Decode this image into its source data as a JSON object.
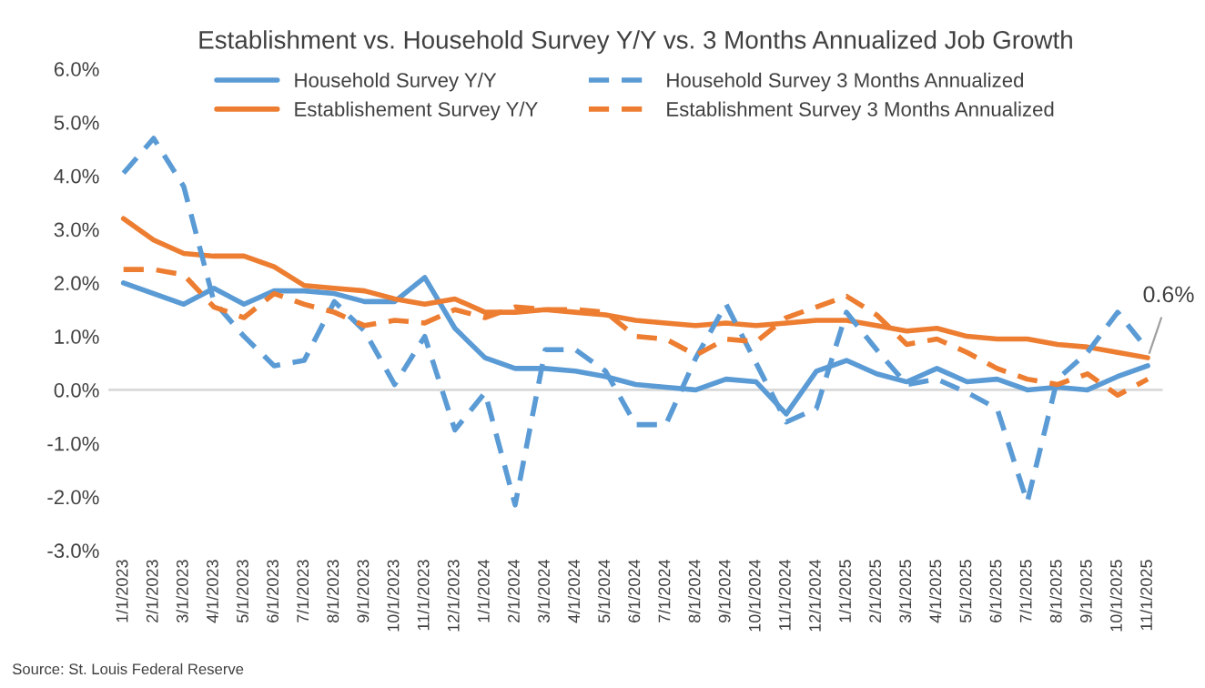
{
  "chart_data": {
    "type": "line",
    "title": "Establishment vs. Household Survey Y/Y vs. 3 Months Annualized Job Growth",
    "categories": [
      "1/1/2023",
      "2/1/2023",
      "3/1/2023",
      "4/1/2023",
      "5/1/2023",
      "6/1/2023",
      "7/1/2023",
      "8/1/2023",
      "9/1/2023",
      "10/1/2023",
      "11/1/2023",
      "12/1/2023",
      "1/1/2024",
      "2/1/2024",
      "3/1/2024",
      "4/1/2024",
      "5/1/2024",
      "6/1/2024",
      "7/1/2024",
      "8/1/2024",
      "9/1/2024",
      "10/1/2024",
      "11/1/2024",
      "12/1/2024",
      "1/1/2025",
      "2/1/2025",
      "3/1/2025",
      "4/1/2025",
      "5/1/2025",
      "6/1/2025",
      "7/1/2025",
      "8/1/2025",
      "9/1/2025",
      "10/1/2025",
      "11/1/2025"
    ],
    "series": [
      {
        "name": "Household Survey Y/Y",
        "color": "#5b9bd5",
        "line_style": "solid",
        "values": [
          2.0,
          1.8,
          1.6,
          1.9,
          1.6,
          1.85,
          1.85,
          1.8,
          1.65,
          1.65,
          2.1,
          1.15,
          0.6,
          0.4,
          0.4,
          0.35,
          0.25,
          0.1,
          0.05,
          0.0,
          0.2,
          0.15,
          -0.45,
          0.35,
          0.55,
          0.3,
          0.15,
          0.4,
          0.15,
          0.2,
          0.0,
          0.05,
          0.0,
          0.25,
          0.45
        ]
      },
      {
        "name": "Establishement Survey Y/Y",
        "color": "#ed7d31",
        "line_style": "solid",
        "values": [
          3.2,
          2.8,
          2.55,
          2.5,
          2.5,
          2.3,
          1.95,
          1.9,
          1.85,
          1.7,
          1.6,
          1.7,
          1.45,
          1.45,
          1.5,
          1.45,
          1.4,
          1.3,
          1.25,
          1.2,
          1.25,
          1.2,
          1.25,
          1.3,
          1.3,
          1.2,
          1.1,
          1.15,
          1.0,
          0.95,
          0.95,
          0.85,
          0.8,
          0.7,
          0.6
        ]
      },
      {
        "name": "Household Survey 3 Months Annualized",
        "color": "#5b9bd5",
        "line_style": "dashed",
        "values": [
          4.05,
          4.7,
          3.8,
          1.65,
          1.0,
          0.45,
          0.55,
          1.65,
          1.1,
          0.1,
          1.0,
          -0.75,
          -0.05,
          -2.15,
          0.75,
          0.75,
          0.35,
          -0.65,
          -0.65,
          0.6,
          1.6,
          0.5,
          -0.6,
          -0.35,
          1.45,
          0.75,
          0.1,
          0.2,
          -0.05,
          -0.35,
          -2.1,
          0.2,
          0.7,
          1.45,
          0.75
        ]
      },
      {
        "name": "Establishment Survey 3 Months Annualized",
        "color": "#ed7d31",
        "line_style": "dashed",
        "values": [
          2.25,
          2.25,
          2.15,
          1.55,
          1.35,
          1.8,
          1.6,
          1.45,
          1.2,
          1.3,
          1.25,
          1.5,
          1.35,
          1.55,
          1.5,
          1.5,
          1.45,
          1.0,
          0.95,
          0.65,
          0.95,
          0.9,
          1.35,
          1.55,
          1.75,
          1.4,
          0.85,
          0.95,
          0.7,
          0.4,
          0.2,
          0.1,
          0.3,
          -0.1,
          0.2
        ]
      }
    ],
    "ylim": [
      -3,
      6
    ],
    "yticks": [
      {
        "value": -3,
        "label": "-3.0%"
      },
      {
        "value": -2,
        "label": "-2.0%"
      },
      {
        "value": -1,
        "label": "-1.0%"
      },
      {
        "value": 0,
        "label": "0.0%"
      },
      {
        "value": 1,
        "label": "1.0%"
      },
      {
        "value": 2,
        "label": "2.0%"
      },
      {
        "value": 3,
        "label": "3.0%"
      },
      {
        "value": 4,
        "label": "4.0%"
      },
      {
        "value": 5,
        "label": "5.0%"
      },
      {
        "value": 6,
        "label": "6.0%"
      }
    ],
    "grid": false,
    "ref_lines": [
      {
        "axis": "y",
        "value": 0,
        "color": "#d9d9d9"
      }
    ],
    "legend": "top",
    "marker": "none",
    "annotations": [
      {
        "text": "0.6%",
        "x": "11/1/2025",
        "y": 0.6
      },
      "Source: St. Louis Federal Reserve"
    ]
  }
}
